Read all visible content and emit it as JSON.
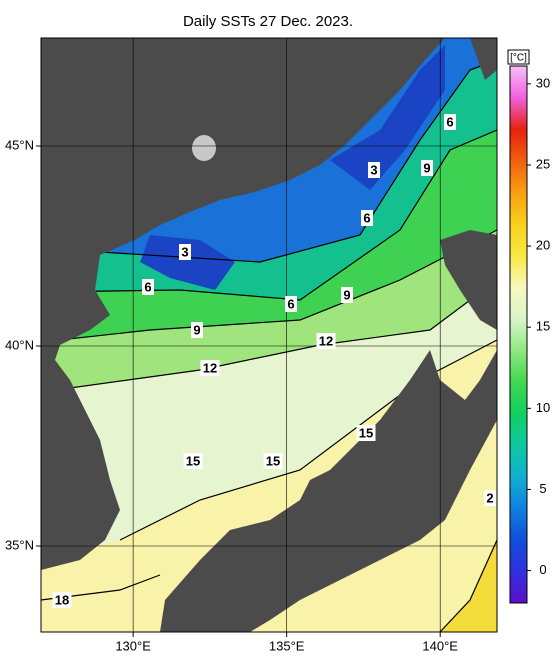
{
  "title": "Daily SSTs 27 Dec. 2023.",
  "map": {
    "xlim": [
      127,
      141.85
    ],
    "ylim": [
      32.85,
      47.7
    ],
    "xticks": [
      {
        "value": 130,
        "label": "130°E"
      },
      {
        "value": 135,
        "label": "135°E"
      },
      {
        "value": 140,
        "label": "140°E"
      }
    ],
    "yticks": [
      {
        "value": 35,
        "label": "35°N"
      },
      {
        "value": 40,
        "label": "40°N"
      },
      {
        "value": 45,
        "label": "45°N"
      }
    ],
    "grid": true,
    "land_color": "#4b4b4b",
    "contour_labels": [
      "3",
      "3",
      "6",
      "6",
      "6",
      "6",
      "9",
      "9",
      "9",
      "12",
      "12",
      "15",
      "15",
      "15",
      "18",
      "2"
    ]
  },
  "colorbar": {
    "label": "[°C]",
    "lim": [
      -2,
      31.1
    ],
    "ticks": [
      0,
      5,
      10,
      15,
      20,
      25,
      30
    ],
    "colors": [
      "#5a10c8",
      "#3030e0",
      "#1050d8",
      "#1080e0",
      "#10b0d0",
      "#10c8a0",
      "#10d060",
      "#40d850",
      "#90e880",
      "#d8f5c8",
      "#f8f8c0",
      "#f8e840",
      "#f8d020",
      "#f8a010",
      "#f06010",
      "#e82010",
      "#f060e0",
      "#f8c0f8"
    ]
  }
}
